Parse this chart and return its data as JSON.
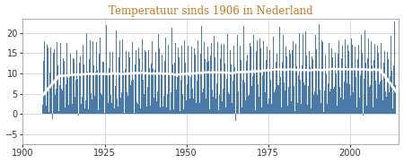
{
  "title": "Temperatuur sinds 1906 in Nederland",
  "title_color": "#c87820",
  "bg_color": "#ffffff",
  "bar_color": "#4a7aaa",
  "smooth_color": "#ffffff",
  "xlim": [
    1900.5,
    2015.0
  ],
  "ylim": [
    -7.5,
    23.5
  ],
  "yticks": [
    -5,
    0,
    5,
    10,
    15,
    20
  ],
  "xticks": [
    1900,
    1925,
    1950,
    1975,
    2000
  ],
  "grid_color": "#cccccc",
  "figsize": [
    4.5,
    1.82
  ],
  "dpi": 100,
  "start_year": 1906,
  "n_months": 1296,
  "seed": 42
}
